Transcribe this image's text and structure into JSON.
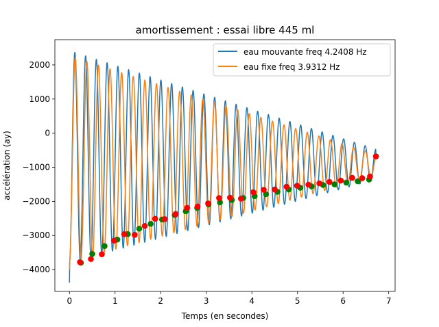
{
  "chart_data": {
    "type": "line",
    "title": "amortissement : essai libre 445 ml",
    "xlabel": "Temps (en secondes)",
    "ylabel": "accélération  (ay)",
    "xlim": [
      -0.32,
      7.14
    ],
    "ylim": [
      -4640,
      2740
    ],
    "xticks": [
      0,
      1,
      2,
      3,
      4,
      5,
      6,
      7
    ],
    "yticks": [
      -4000,
      -3000,
      -2000,
      -1000,
      0,
      1000,
      2000
    ],
    "grid": false,
    "legend_position": "top-right",
    "series": [
      {
        "name": "eau mouvante freq 4.2408 Hz",
        "color": "#1f77b4",
        "frequency_hz": 4.2408,
        "start_time": 0.0,
        "end_time": 6.72,
        "start_value": -4380,
        "first_peak": 2420,
        "last_peak": -470,
        "first_trough": -3800,
        "last_trough": -1360,
        "end_value": -680
      },
      {
        "name": "eau fixe freq 3.9312 Hz",
        "color": "#ff7f0e",
        "frequency_hz": 3.9312,
        "start_time": 0.0,
        "end_time": 6.72,
        "start_value": -4000,
        "first_peak": 2270,
        "last_peak": -620,
        "first_trough": -3780,
        "last_trough": -1260,
        "end_value": -680
      }
    ],
    "markers": [
      {
        "name": "minima eau mouvante",
        "color": "#008000",
        "points": [
          [
            0.25,
            -3800
          ],
          [
            0.5,
            -3540
          ],
          [
            0.77,
            -3310
          ],
          [
            1.05,
            -3120
          ],
          [
            1.28,
            -2960
          ],
          [
            1.53,
            -2800
          ],
          [
            1.78,
            -2660
          ],
          [
            2.03,
            -2530
          ],
          [
            2.31,
            -2400
          ],
          [
            2.55,
            -2290
          ],
          [
            2.8,
            -2190
          ],
          [
            3.05,
            -2090
          ],
          [
            3.3,
            -2030
          ],
          [
            3.56,
            -1960
          ],
          [
            3.81,
            -1900
          ],
          [
            4.06,
            -1850
          ],
          [
            4.31,
            -1790
          ],
          [
            4.56,
            -1720
          ],
          [
            4.81,
            -1650
          ],
          [
            5.06,
            -1600
          ],
          [
            5.31,
            -1560
          ],
          [
            5.56,
            -1520
          ],
          [
            5.81,
            -1500
          ],
          [
            6.07,
            -1450
          ],
          [
            6.32,
            -1410
          ],
          [
            6.57,
            -1360
          ],
          [
            6.72,
            -680
          ]
        ]
      },
      {
        "name": "minima eau fixe",
        "color": "#ff0000",
        "points": [
          [
            0.23,
            -3780
          ],
          [
            0.47,
            -3690
          ],
          [
            0.71,
            -3550
          ],
          [
            0.98,
            -3150
          ],
          [
            1.2,
            -2960
          ],
          [
            1.43,
            -2980
          ],
          [
            1.65,
            -2720
          ],
          [
            1.88,
            -2510
          ],
          [
            2.09,
            -2520
          ],
          [
            2.33,
            -2370
          ],
          [
            2.58,
            -2190
          ],
          [
            2.81,
            -2150
          ],
          [
            3.04,
            -2060
          ],
          [
            3.28,
            -1900
          ],
          [
            3.52,
            -1890
          ],
          [
            3.76,
            -1920
          ],
          [
            4.03,
            -1730
          ],
          [
            4.26,
            -1660
          ],
          [
            4.5,
            -1650
          ],
          [
            4.76,
            -1570
          ],
          [
            4.99,
            -1540
          ],
          [
            5.24,
            -1510
          ],
          [
            5.48,
            -1470
          ],
          [
            5.7,
            -1430
          ],
          [
            5.95,
            -1390
          ],
          [
            6.2,
            -1310
          ],
          [
            6.42,
            -1320
          ],
          [
            6.59,
            -1270
          ],
          [
            6.72,
            -680
          ]
        ]
      }
    ]
  }
}
